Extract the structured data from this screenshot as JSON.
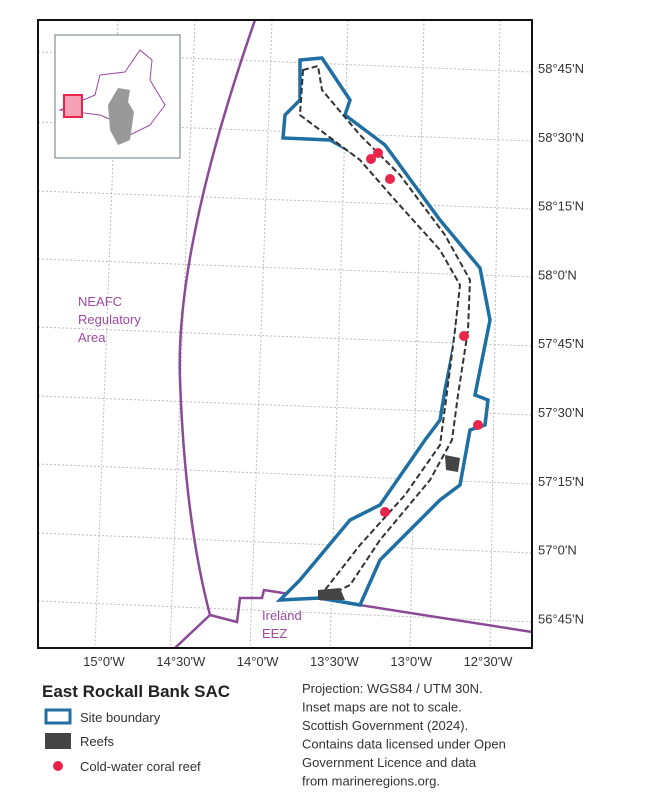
{
  "map": {
    "lat_labels": [
      "58°45'N",
      "58°30'N",
      "58°15'N",
      "58°0'N",
      "57°45'N",
      "57°30'N",
      "57°15'N",
      "57°0'N",
      "56°45'N"
    ],
    "lon_labels": [
      "15°0'W",
      "14°30'W",
      "14°0'W",
      "13°30'W",
      "13°0'W",
      "12°30'W"
    ],
    "areas": [
      "NEAFC\nRegulatory\nArea",
      "Ireland\nEEZ"
    ]
  },
  "legend": {
    "title": "East Rockall Bank SAC",
    "items": [
      "Site boundary",
      "Reefs",
      "Cold-water coral reef"
    ]
  },
  "note": [
    "Projection: WGS84 / UTM 30N.",
    "Inset maps are not to scale.",
    "Scottish Government (2024).",
    "Contains data licensed under Open",
    "Government Licence and data",
    "from marineregions.org."
  ]
}
